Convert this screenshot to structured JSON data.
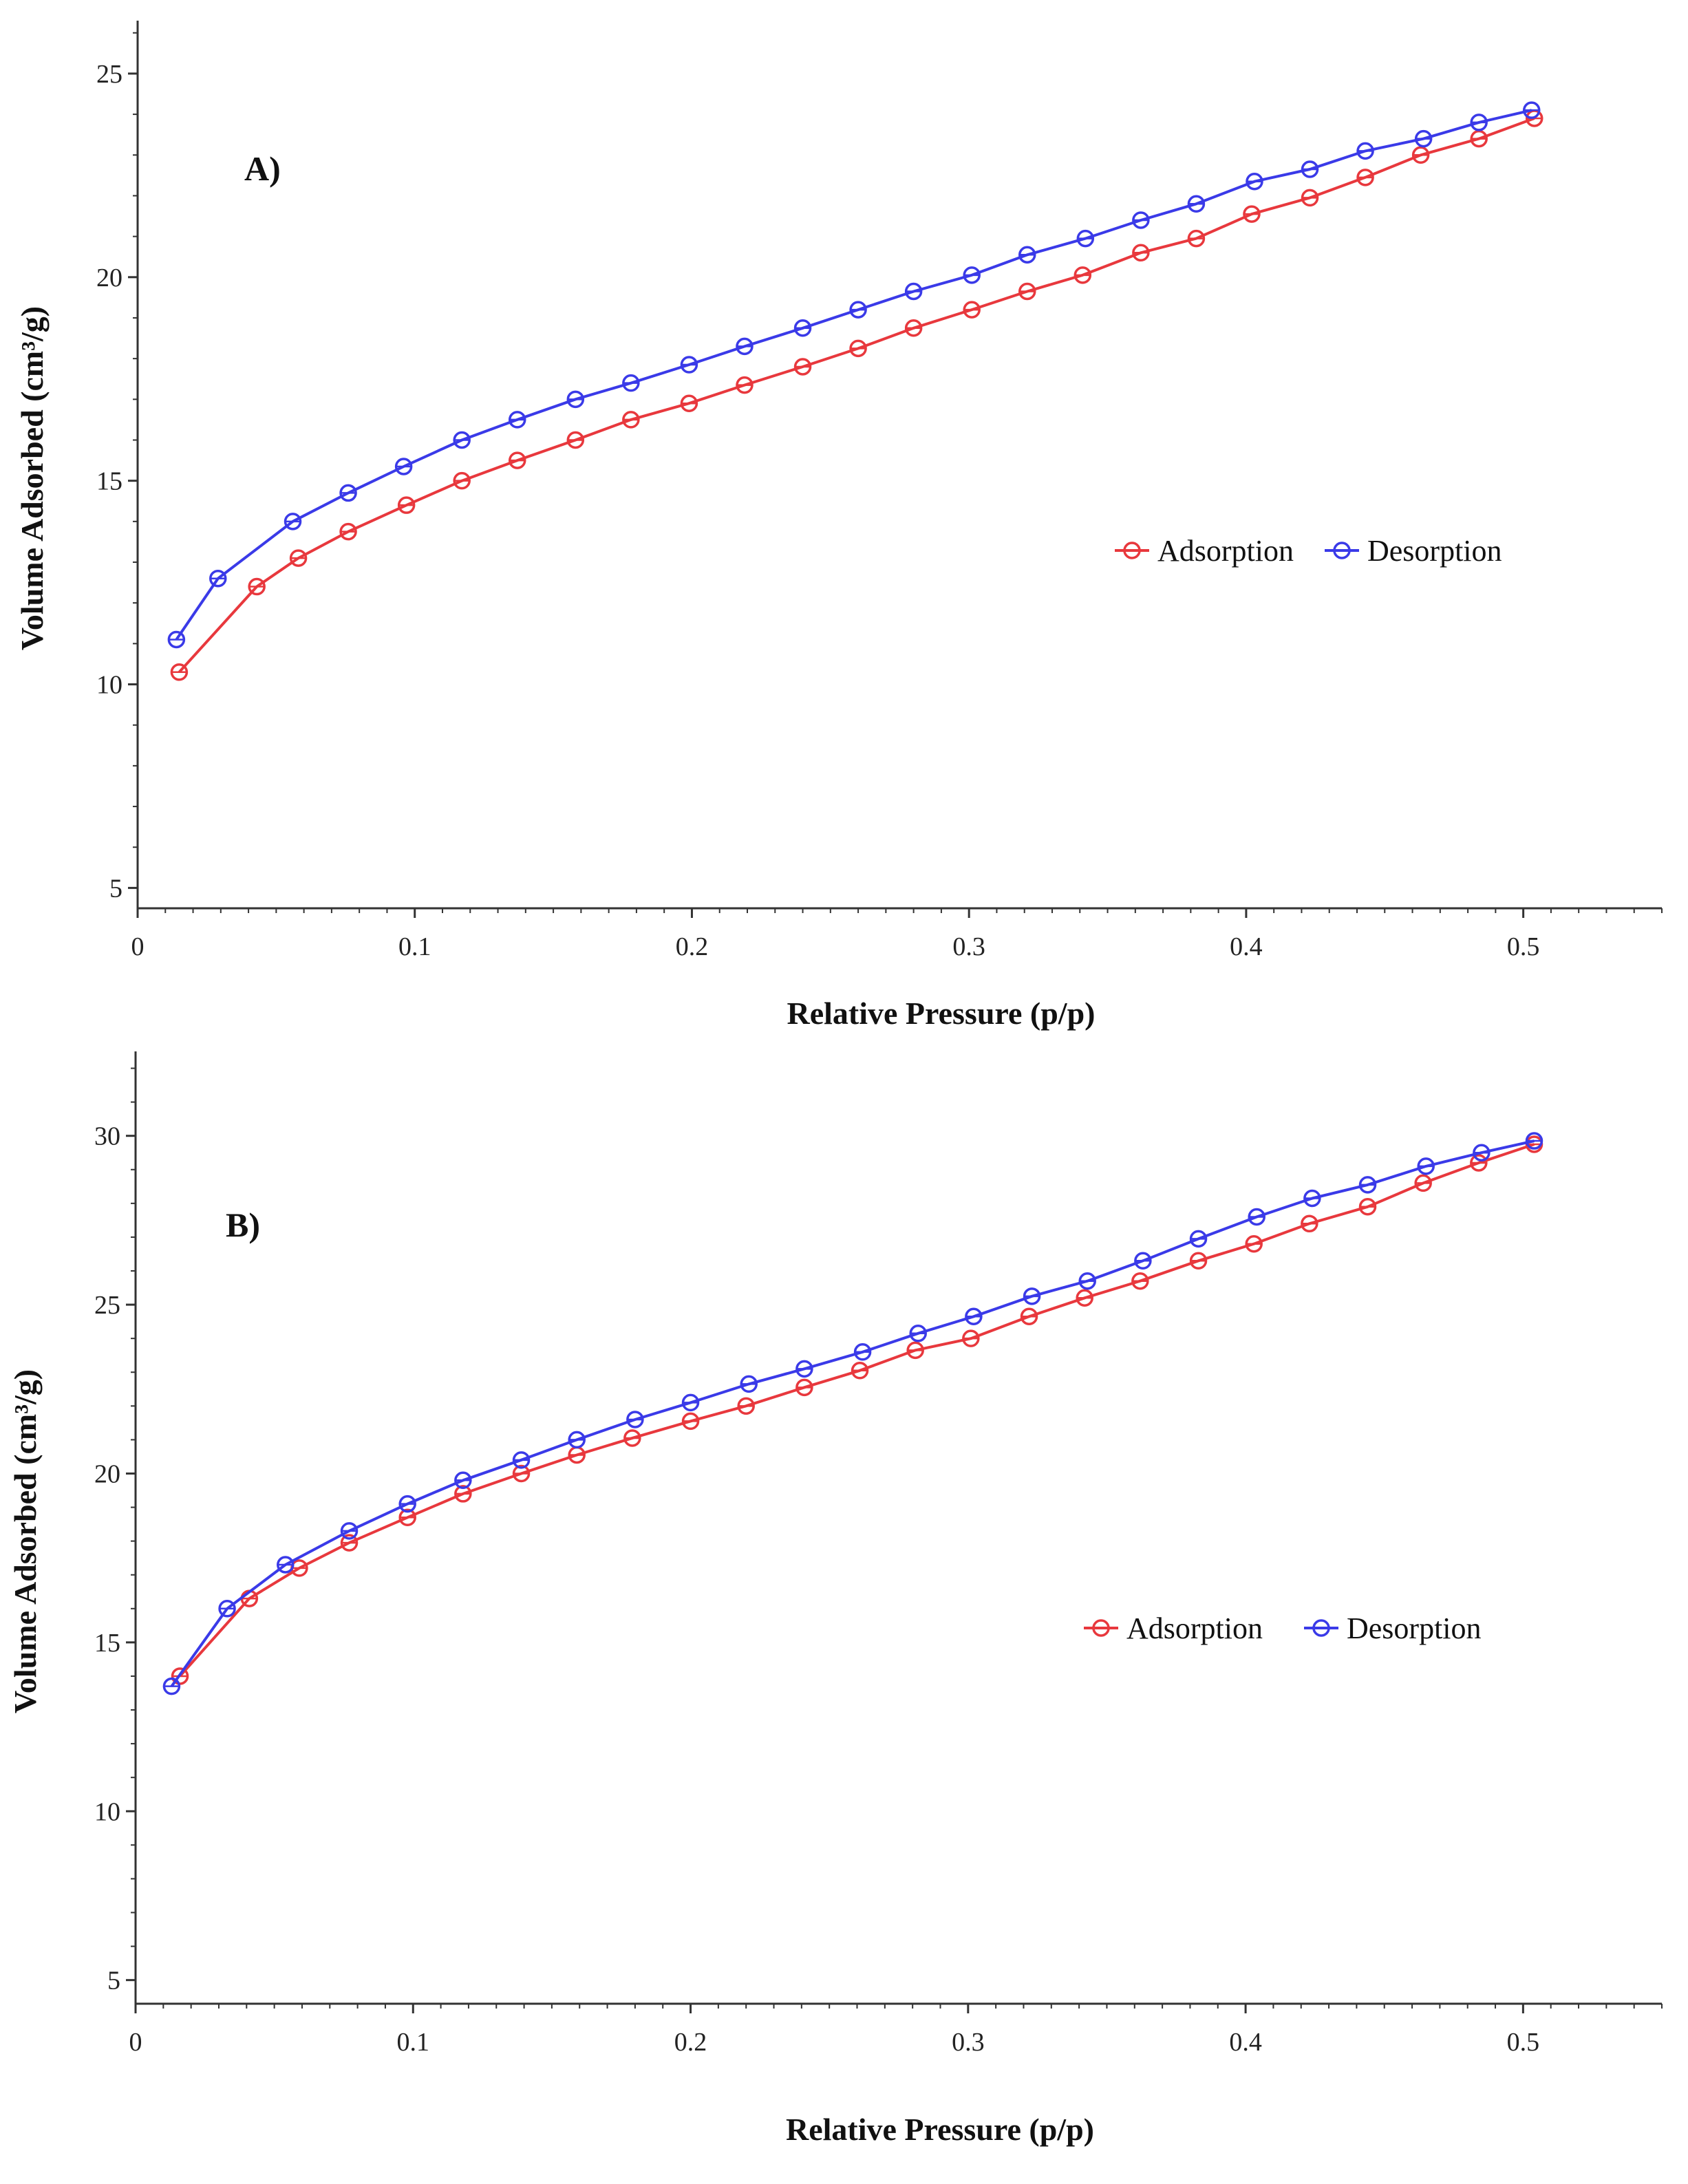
{
  "chart_data": [
    {
      "type": "line",
      "panel_label": "A)",
      "xlabel": "Relative Pressure (p/p)",
      "ylabel": "Volume Adsorbed (cm³/g)",
      "xlim": [
        0,
        0.55
      ],
      "ylim": [
        4.5,
        26.3
      ],
      "xticks": [
        0,
        0.1,
        0.2,
        0.3,
        0.4,
        0.5
      ],
      "xtick_labels": [
        "0",
        "0.1",
        "0.2",
        "0.3",
        "0.4",
        "0.5"
      ],
      "yticks": [
        5,
        10,
        15,
        20,
        25
      ],
      "ytick_labels": [
        "5",
        "10",
        "15",
        "20",
        "25"
      ],
      "legend_position": "right-center",
      "series": [
        {
          "name": "Adsorption",
          "color": "#e8383d",
          "x": [
            0.015,
            0.043,
            0.058,
            0.076,
            0.097,
            0.117,
            0.137,
            0.158,
            0.178,
            0.199,
            0.219,
            0.24,
            0.26,
            0.28,
            0.301,
            0.321,
            0.341,
            0.362,
            0.382,
            0.402,
            0.423,
            0.443,
            0.463,
            0.484,
            0.504
          ],
          "y": [
            10.3,
            12.4,
            13.1,
            13.75,
            14.4,
            15.0,
            15.5,
            16.0,
            16.5,
            16.9,
            17.35,
            17.8,
            18.25,
            18.75,
            19.2,
            19.65,
            20.05,
            20.6,
            20.95,
            21.55,
            21.95,
            22.45,
            23.0,
            23.4,
            23.9
          ]
        },
        {
          "name": "Desorption",
          "color": "#3a3ae8",
          "x": [
            0.014,
            0.029,
            0.056,
            0.076,
            0.096,
            0.117,
            0.137,
            0.158,
            0.178,
            0.199,
            0.219,
            0.24,
            0.26,
            0.28,
            0.301,
            0.321,
            0.342,
            0.362,
            0.382,
            0.403,
            0.423,
            0.443,
            0.464,
            0.484,
            0.503
          ],
          "y": [
            11.1,
            12.6,
            14.0,
            14.7,
            15.35,
            16.0,
            16.5,
            17.0,
            17.4,
            17.85,
            18.3,
            18.75,
            19.2,
            19.65,
            20.05,
            20.55,
            20.95,
            21.4,
            21.8,
            22.35,
            22.65,
            23.1,
            23.4,
            23.8,
            24.1
          ]
        }
      ]
    },
    {
      "type": "line",
      "panel_label": "B)",
      "xlabel": "Relative Pressure (p/p)",
      "ylabel": "Volume Adsorbed (cm³/g)",
      "xlim": [
        0,
        0.55
      ],
      "ylim": [
        4.3,
        32.5
      ],
      "xticks": [
        0,
        0.1,
        0.2,
        0.3,
        0.4,
        0.5
      ],
      "xtick_labels": [
        "0",
        "0.1",
        "0.2",
        "0.3",
        "0.4",
        "0.5"
      ],
      "yticks": [
        5,
        10,
        15,
        20,
        25,
        30
      ],
      "ytick_labels": [
        "5",
        "10",
        "15",
        "20",
        "25",
        "30"
      ],
      "legend_position": "right-center",
      "series": [
        {
          "name": "Adsorption",
          "color": "#e8383d",
          "x": [
            0.016,
            0.041,
            0.059,
            0.077,
            0.098,
            0.118,
            0.139,
            0.159,
            0.179,
            0.2,
            0.22,
            0.241,
            0.261,
            0.281,
            0.301,
            0.322,
            0.342,
            0.362,
            0.383,
            0.403,
            0.423,
            0.444,
            0.464,
            0.484,
            0.504
          ],
          "y": [
            14.0,
            16.3,
            17.2,
            17.95,
            18.7,
            19.4,
            20.0,
            20.55,
            21.05,
            21.55,
            22.0,
            22.55,
            23.05,
            23.65,
            24.0,
            24.65,
            25.2,
            25.7,
            26.3,
            26.8,
            27.4,
            27.9,
            28.6,
            29.2,
            29.75
          ]
        },
        {
          "name": "Desorption",
          "color": "#3a3ae8",
          "x": [
            0.013,
            0.033,
            0.054,
            0.077,
            0.098,
            0.118,
            0.139,
            0.159,
            0.18,
            0.2,
            0.221,
            0.241,
            0.262,
            0.282,
            0.302,
            0.323,
            0.343,
            0.363,
            0.383,
            0.404,
            0.424,
            0.444,
            0.465,
            0.485,
            0.504
          ],
          "y": [
            13.7,
            16.0,
            17.3,
            18.3,
            19.1,
            19.8,
            20.4,
            21.0,
            21.6,
            22.1,
            22.65,
            23.1,
            23.6,
            24.15,
            24.65,
            25.25,
            25.7,
            26.3,
            26.95,
            27.6,
            28.15,
            28.55,
            29.1,
            29.5,
            29.85
          ]
        }
      ]
    }
  ]
}
